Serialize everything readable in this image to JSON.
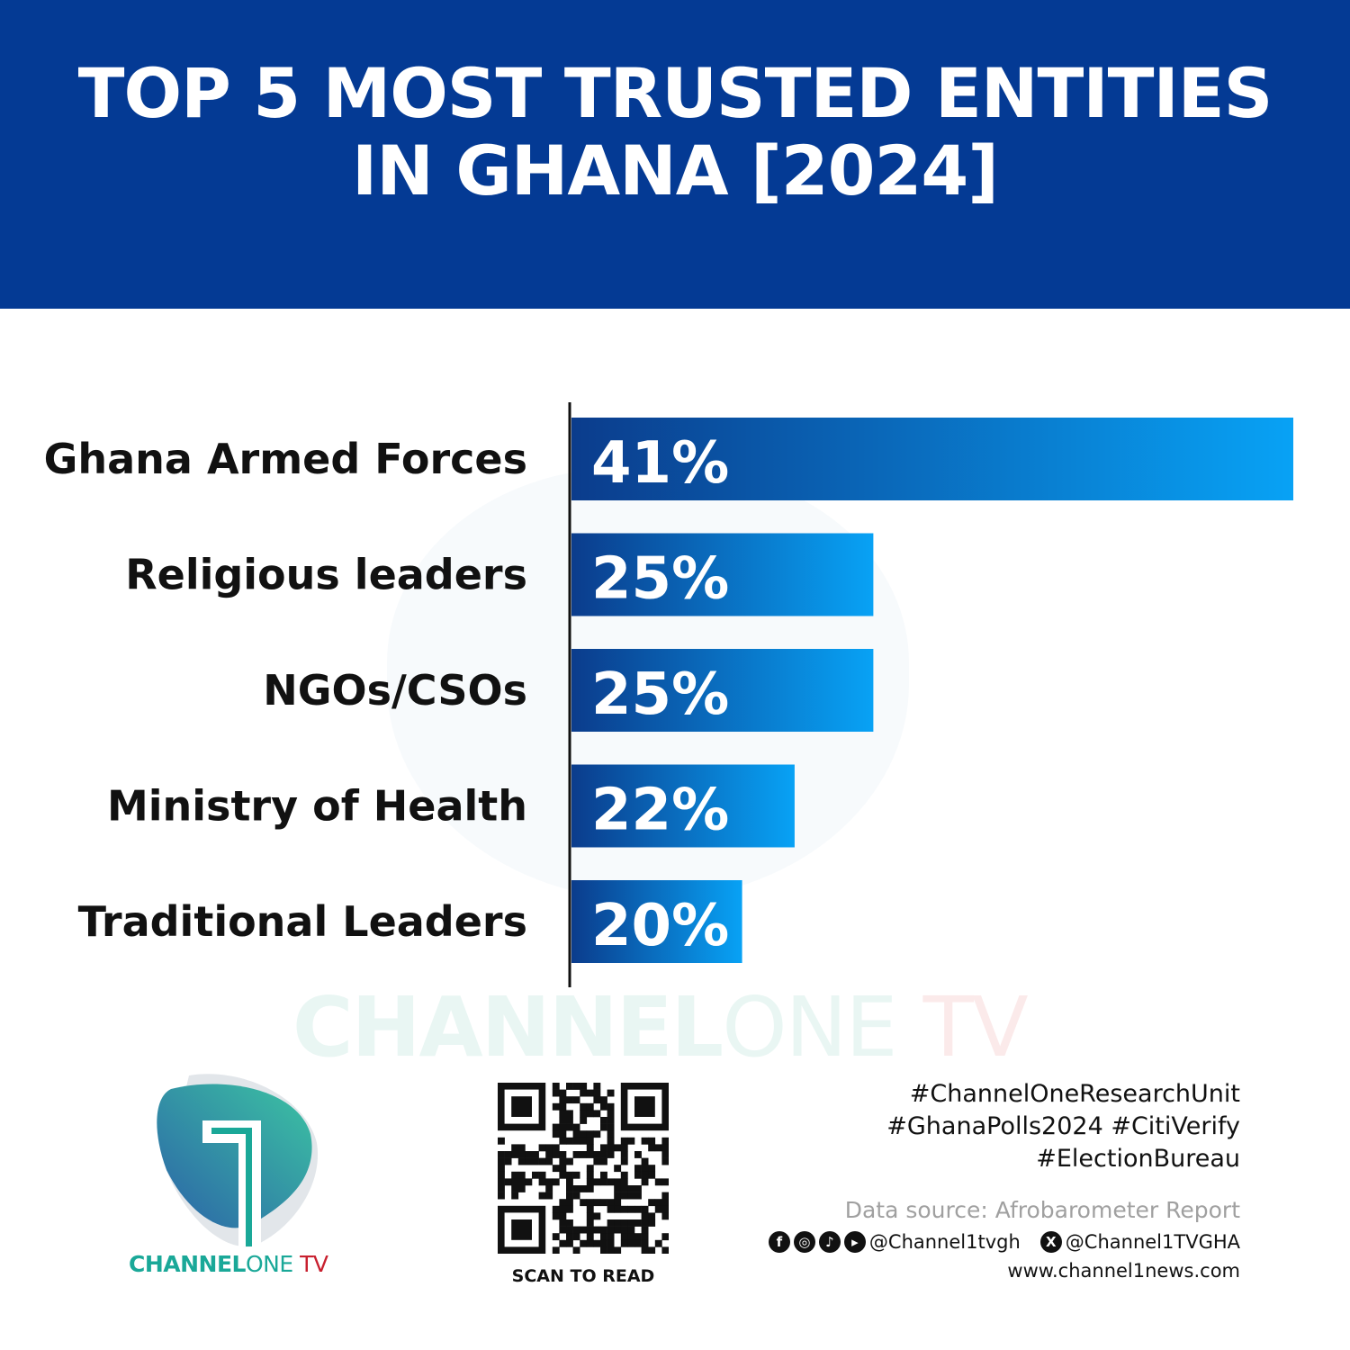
{
  "header": {
    "title_line1": "TOP 5 MOST TRUSTED ENTITIES",
    "title_line2": "IN GHANA [2024]",
    "background": "#043a94"
  },
  "chart_data": {
    "type": "bar",
    "orientation": "horizontal",
    "categories": [
      "Ghana Armed Forces",
      "Religious leaders",
      "NGOs/CSOs",
      "Ministry of Health",
      "Traditional Leaders"
    ],
    "values": [
      41,
      25,
      25,
      22,
      20
    ],
    "data_labels": [
      "41%",
      "25%",
      "25%",
      "22%",
      "20%"
    ],
    "xlim": [
      13.5,
      41
    ],
    "grid": false,
    "bar_gradient": [
      "#0b3c8c",
      "#08a2f5"
    ]
  },
  "watermark": {
    "brand_a": "CHANNEL",
    "brand_b": "ONE",
    "brand_c": "TV"
  },
  "footer": {
    "brand_a": "CHANNEL",
    "brand_b": "ONE",
    "brand_c": " TV",
    "scan_label": "SCAN TO READ",
    "hashtags": [
      "#ChannelOneResearchUnit",
      "#GhanaPolls2024 #CitiVerify",
      "#ElectionBureau"
    ],
    "source": "Data source: Afrobarometer Report",
    "social_handle": "@Channel1tvgh",
    "x_handle": "@Channel1TVGHA",
    "website": "www.channel1news.com",
    "icons": [
      "facebook-icon",
      "instagram-icon",
      "tiktok-icon",
      "youtube-icon",
      "x-icon"
    ]
  }
}
